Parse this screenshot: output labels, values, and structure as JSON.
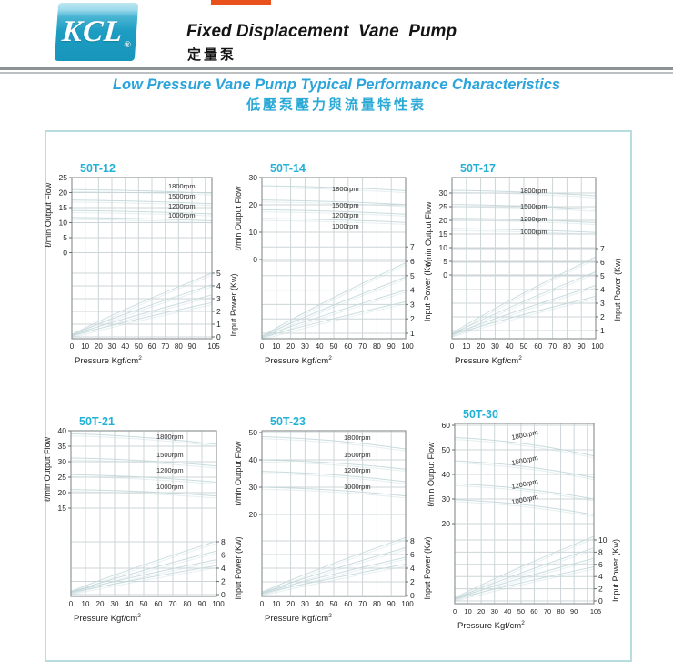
{
  "header": {
    "logo_text": "KCL",
    "logo_reg": "®",
    "title_en": "Fixed Displacement  Vane  Pump",
    "title_zh": "定量泵"
  },
  "subtitle": {
    "en": "Low Pressure Vane Pump Typical Performance Characteristics",
    "zh": "低壓泵壓力與流量特性表"
  },
  "colors": {
    "accent_cyan_title": "#21b1d6",
    "subtitle_blue": "#2ba4dc",
    "logo_teal": "#1e9dc2",
    "top_bar_orange": "#e8511b",
    "grid_line": "#ccd5d7",
    "curve_line": "#c3d7d9",
    "plot_border": "#8f9597",
    "box_border": "#b9dce0"
  },
  "chart_data": [
    {
      "type": "line",
      "model": "50T-12",
      "x_axis": {
        "label": "Pressure Kgf/cm",
        "label_sup": "2",
        "ticks": [
          0,
          10,
          20,
          30,
          40,
          50,
          60,
          70,
          80,
          90
        ],
        "end_tick": 105,
        "max": 105
      },
      "flow_axis": {
        "label": "ℓ/min Output Flow",
        "ticks": [
          25,
          20,
          15,
          10,
          5,
          0
        ]
      },
      "power_axis": {
        "label": "Input Power (Kw)",
        "ticks": [
          5,
          4,
          3,
          2,
          1,
          0
        ]
      },
      "series": [
        {
          "label": "1800rpm",
          "flow_lpm": [
            [
              0,
              21.0
            ],
            [
              105,
              19.8
            ]
          ],
          "power_kw": [
            [
              0,
              0.2
            ],
            [
              105,
              5.0
            ]
          ]
        },
        {
          "label": "1500rpm",
          "flow_lpm": [
            [
              0,
              17.5
            ],
            [
              105,
              16.3
            ]
          ],
          "power_kw": [
            [
              0,
              0.2
            ],
            [
              105,
              4.1
            ]
          ]
        },
        {
          "label": "1200rpm",
          "flow_lpm": [
            [
              0,
              14.0
            ],
            [
              105,
              12.9
            ]
          ],
          "power_kw": [
            [
              0,
              0.15
            ],
            [
              105,
              3.3
            ]
          ]
        },
        {
          "label": "1000rpm",
          "flow_lpm": [
            [
              0,
              11.7
            ],
            [
              105,
              10.6
            ]
          ],
          "power_kw": [
            [
              0,
              0.1
            ],
            [
              105,
              2.7
            ]
          ]
        }
      ]
    },
    {
      "type": "line",
      "model": "50T-14",
      "x_axis": {
        "label": "Pressure Kgf/cm",
        "label_sup": "2",
        "ticks": [
          0,
          10,
          20,
          30,
          40,
          50,
          60,
          70,
          80,
          90
        ],
        "end_tick": 100,
        "max": 100
      },
      "flow_axis": {
        "label": "ℓ/min Output Flow",
        "ticks": [
          30,
          20,
          10,
          0
        ]
      },
      "power_axis": {
        "label": "Input Power (Kw)",
        "ticks": [
          7,
          6,
          5,
          4,
          3,
          2,
          1
        ]
      },
      "series": [
        {
          "label": "1800rpm",
          "flow_lpm": [
            [
              0,
              27.0
            ],
            [
              100,
              25.2
            ]
          ],
          "power_kw": [
            [
              0,
              0.8
            ],
            [
              100,
              5.9
            ]
          ]
        },
        {
          "label": "1500rpm",
          "flow_lpm": [
            [
              0,
              21.8
            ],
            [
              100,
              20.1
            ]
          ],
          "power_kw": [
            [
              0,
              0.8
            ],
            [
              100,
              4.9
            ]
          ]
        },
        {
          "label": "1200rpm",
          "flow_lpm": [
            [
              0,
              18.2
            ],
            [
              100,
              16.6
            ]
          ],
          "power_kw": [
            [
              0,
              0.75
            ],
            [
              100,
              4.0
            ]
          ]
        },
        {
          "label": "1000rpm",
          "flow_lpm": [
            [
              0,
              15.0
            ],
            [
              100,
              13.6
            ]
          ],
          "power_kw": [
            [
              0,
              0.7
            ],
            [
              100,
              3.2
            ]
          ]
        }
      ]
    },
    {
      "type": "line",
      "model": "50T-17",
      "x_axis": {
        "label": "Pressure Kgf/cm",
        "label_sup": "2",
        "ticks": [
          0,
          10,
          20,
          30,
          40,
          50,
          60,
          70,
          80,
          90
        ],
        "end_tick": 100,
        "max": 100
      },
      "flow_axis": {
        "label": "ℓ/min Output Flow",
        "ticks": [
          30,
          25,
          20,
          15,
          10,
          5,
          0
        ]
      },
      "power_axis": {
        "label": "Input Power (Kw)",
        "ticks": [
          7,
          6,
          5,
          4,
          3,
          2,
          1
        ]
      },
      "series": [
        {
          "label": "1800rpm",
          "flow_lpm": [
            [
              0,
              31.0
            ],
            [
              100,
              29.0
            ]
          ],
          "power_kw": [
            [
              0,
              0.8
            ],
            [
              100,
              6.4
            ]
          ]
        },
        {
          "label": "1500rpm",
          "flow_lpm": [
            [
              0,
              25.8
            ],
            [
              100,
              24.0
            ]
          ],
          "power_kw": [
            [
              0,
              0.75
            ],
            [
              100,
              5.3
            ]
          ]
        },
        {
          "label": "1200rpm",
          "flow_lpm": [
            [
              0,
              20.8
            ],
            [
              100,
              19.2
            ]
          ],
          "power_kw": [
            [
              0,
              0.7
            ],
            [
              100,
              4.3
            ]
          ]
        },
        {
          "label": "1000rpm",
          "flow_lpm": [
            [
              0,
              17.0
            ],
            [
              100,
              15.6
            ]
          ],
          "power_kw": [
            [
              0,
              0.7
            ],
            [
              100,
              3.5
            ]
          ]
        }
      ]
    },
    {
      "type": "line",
      "model": "50T-21",
      "x_axis": {
        "label": "Pressure Kgf/cm",
        "label_sup": "2",
        "ticks": [
          0,
          10,
          20,
          30,
          40,
          50,
          60,
          70,
          80,
          90
        ],
        "end_tick": 100,
        "max": 100
      },
      "flow_axis": {
        "label": "ℓ/min Output Flow",
        "ticks": [
          40,
          35,
          30,
          25,
          20,
          15
        ]
      },
      "power_axis": {
        "label": "Input Power (Kw)",
        "ticks": [
          8,
          6,
          4,
          2,
          0
        ]
      },
      "series": [
        {
          "label": "1800rpm",
          "flow_lpm": [
            [
              0,
              39.0
            ],
            [
              100,
              35.6
            ]
          ],
          "power_kw": [
            [
              0,
              0.5
            ],
            [
              100,
              8.1
            ]
          ]
        },
        {
          "label": "1500rpm",
          "flow_lpm": [
            [
              0,
              31.2
            ],
            [
              100,
              28.6
            ]
          ],
          "power_kw": [
            [
              0,
              0.4
            ],
            [
              100,
              6.6
            ]
          ]
        },
        {
          "label": "1200rpm",
          "flow_lpm": [
            [
              0,
              25.8
            ],
            [
              100,
              23.4
            ]
          ],
          "power_kw": [
            [
              0,
              0.4
            ],
            [
              100,
              5.3
            ]
          ]
        },
        {
          "label": "1000rpm",
          "flow_lpm": [
            [
              0,
              21.0
            ],
            [
              100,
              18.9
            ]
          ],
          "power_kw": [
            [
              0,
              0.3
            ],
            [
              100,
              4.4
            ]
          ]
        }
      ]
    },
    {
      "type": "line",
      "model": "50T-23",
      "x_axis": {
        "label": "Pressure Kgf/cm",
        "label_sup": "2",
        "ticks": [
          0,
          10,
          20,
          30,
          40,
          50,
          60,
          70,
          80,
          90
        ],
        "end_tick": 100,
        "max": 100
      },
      "flow_axis": {
        "label": "ℓ/min Output Flow",
        "ticks": [
          50,
          40,
          30,
          20
        ]
      },
      "power_axis": {
        "label": "Input Power (Kw)",
        "ticks": [
          8,
          6,
          4,
          2,
          0
        ]
      },
      "series": [
        {
          "label": "1800rpm",
          "flow_lpm": [
            [
              0,
              48.5
            ],
            [
              100,
              44.0
            ]
          ],
          "power_kw": [
            [
              0,
              0.5
            ],
            [
              100,
              8.5
            ]
          ]
        },
        {
          "label": "1500rpm",
          "flow_lpm": [
            [
              0,
              40.0
            ],
            [
              100,
              36.6
            ]
          ],
          "power_kw": [
            [
              0,
              0.4
            ],
            [
              100,
              7.0
            ]
          ]
        },
        {
          "label": "1200rpm",
          "flow_lpm": [
            [
              0,
              35.8
            ],
            [
              100,
              32.0
            ]
          ],
          "power_kw": [
            [
              0,
              0.4
            ],
            [
              100,
              5.6
            ]
          ]
        },
        {
          "label": "1000rpm",
          "flow_lpm": [
            [
              0,
              30.0
            ],
            [
              100,
              26.8
            ]
          ],
          "power_kw": [
            [
              0,
              0.3
            ],
            [
              100,
              4.6
            ]
          ]
        }
      ]
    },
    {
      "type": "line",
      "model": "50T-30",
      "x_axis": {
        "label": "Pressure Kgf/cm",
        "label_sup": "2",
        "ticks": [
          0,
          10,
          20,
          30,
          40,
          50,
          60,
          70,
          80,
          90
        ],
        "end_tick": 105,
        "max": 105
      },
      "flow_axis": {
        "label": "ℓ/min Output Flow",
        "ticks": [
          60,
          50,
          40,
          30,
          20
        ]
      },
      "power_axis": {
        "label": "Input Power (Kw)",
        "ticks": [
          10,
          8,
          6,
          4,
          2,
          0
        ]
      },
      "series": [
        {
          "label": "1800rpm",
          "flow_lpm": [
            [
              0,
              55.0
            ],
            [
              105,
              47.5
            ]
          ],
          "power_kw": [
            [
              0,
              0.5
            ],
            [
              105,
              10.6
            ]
          ]
        },
        {
          "label": "1500rpm",
          "flow_lpm": [
            [
              0,
              45.5
            ],
            [
              105,
              38.7
            ]
          ],
          "power_kw": [
            [
              0,
              0.4
            ],
            [
              105,
              8.7
            ]
          ]
        },
        {
          "label": "1200rpm",
          "flow_lpm": [
            [
              0,
              36.2
            ],
            [
              105,
              30.0
            ]
          ],
          "power_kw": [
            [
              0,
              0.4
            ],
            [
              105,
              7.0
            ]
          ]
        },
        {
          "label": "1000rpm",
          "flow_lpm": [
            [
              0,
              29.7
            ],
            [
              105,
              23.6
            ]
          ],
          "power_kw": [
            [
              0,
              0.3
            ],
            [
              105,
              5.6
            ]
          ]
        }
      ]
    }
  ]
}
